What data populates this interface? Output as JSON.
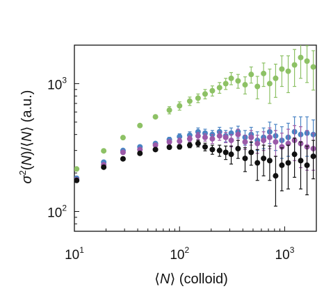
{
  "chart_data": {
    "type": "scatter",
    "title": "",
    "x_scale": "log",
    "y_scale": "log",
    "xlim": [
      10,
      2000
    ],
    "ylim": [
      70,
      2000
    ],
    "grid": false,
    "legend": "none",
    "xlabel_parts": [
      "⟨",
      "N",
      "⟩ (colloid)"
    ],
    "ylabel_parts": [
      "σ",
      "2",
      "(",
      "N",
      ")/⟨",
      "N",
      "⟩ (a.u.)"
    ],
    "x_ticks": [
      {
        "value": 10,
        "base": "10",
        "exp": "1"
      },
      {
        "value": 100,
        "base": "10",
        "exp": "2"
      },
      {
        "value": 1000,
        "base": "10",
        "exp": "3"
      }
    ],
    "y_ticks": [
      {
        "value": 100,
        "base": "10",
        "exp": "2"
      },
      {
        "value": 1000,
        "base": "10",
        "exp": "3"
      }
    ],
    "series": [
      {
        "color": "#8dc165",
        "x": [
          10.5,
          19,
          29,
          42,
          59,
          80,
          100,
          125,
          150,
          175,
          205,
          240,
          275,
          310,
          360,
          420,
          480,
          550,
          630,
          720,
          820,
          940,
          1080,
          1240,
          1420,
          1630,
          1870
        ],
        "y": [
          215,
          298,
          378,
          470,
          550,
          620,
          670,
          730,
          770,
          830,
          880,
          930,
          1000,
          1100,
          1050,
          980,
          1180,
          950,
          1200,
          1000,
          1100,
          1300,
          1250,
          1400,
          1600,
          1500,
          1350
        ],
        "err": [
          0,
          0,
          0,
          0,
          0,
          40,
          50,
          55,
          60,
          70,
          80,
          90,
          100,
          120,
          130,
          150,
          170,
          190,
          250,
          300,
          320,
          350,
          400,
          450,
          500,
          480,
          460
        ]
      },
      {
        "color": "#4a84c4",
        "x": [
          10.5,
          19,
          29,
          42,
          59,
          80,
          100,
          125,
          150,
          175,
          205,
          240,
          275,
          310,
          360,
          420,
          480,
          550,
          630,
          720,
          820,
          940,
          1080,
          1240,
          1420,
          1630,
          1870
        ],
        "y": [
          182,
          243,
          300,
          320,
          340,
          365,
          385,
          395,
          420,
          410,
          400,
          420,
          390,
          410,
          420,
          380,
          400,
          360,
          380,
          420,
          390,
          360,
          380,
          420,
          400,
          410,
          400
        ],
        "err": [
          0,
          0,
          0,
          0,
          10,
          15,
          20,
          25,
          30,
          30,
          30,
          35,
          40,
          40,
          45,
          50,
          55,
          60,
          70,
          80,
          90,
          100,
          110,
          130,
          150,
          140,
          120
        ]
      },
      {
        "color": "#9b5aa8",
        "x": [
          10.5,
          19,
          29,
          42,
          59,
          80,
          100,
          125,
          150,
          175,
          205,
          240,
          275,
          310,
          360,
          420,
          480,
          550,
          630,
          720,
          820,
          940,
          1080,
          1240,
          1420,
          1630,
          1870
        ],
        "y": [
          177,
          232,
          290,
          305,
          330,
          350,
          355,
          370,
          390,
          380,
          370,
          390,
          380,
          360,
          400,
          350,
          380,
          340,
          360,
          380,
          350,
          320,
          340,
          360,
          340,
          320,
          310
        ],
        "err": [
          0,
          0,
          0,
          0,
          10,
          15,
          20,
          20,
          25,
          25,
          30,
          30,
          35,
          40,
          40,
          45,
          50,
          55,
          60,
          70,
          80,
          90,
          100,
          110,
          120,
          110,
          100
        ]
      },
      {
        "color": "#111111",
        "x": [
          10.5,
          19,
          29,
          42,
          59,
          80,
          100,
          125,
          150,
          175,
          205,
          240,
          275,
          310,
          360,
          420,
          480,
          550,
          630,
          720,
          820,
          940,
          1080,
          1240,
          1420,
          1630,
          1870
        ],
        "y": [
          175,
          222,
          258,
          285,
          305,
          318,
          320,
          330,
          340,
          320,
          305,
          300,
          290,
          280,
          310,
          260,
          290,
          240,
          260,
          250,
          190,
          230,
          240,
          280,
          250,
          230,
          270
        ],
        "err": [
          0,
          0,
          0,
          0,
          0,
          10,
          12,
          15,
          20,
          22,
          25,
          30,
          35,
          45,
          50,
          55,
          60,
          65,
          70,
          75,
          80,
          85,
          90,
          95,
          100,
          95,
          90
        ]
      }
    ]
  }
}
